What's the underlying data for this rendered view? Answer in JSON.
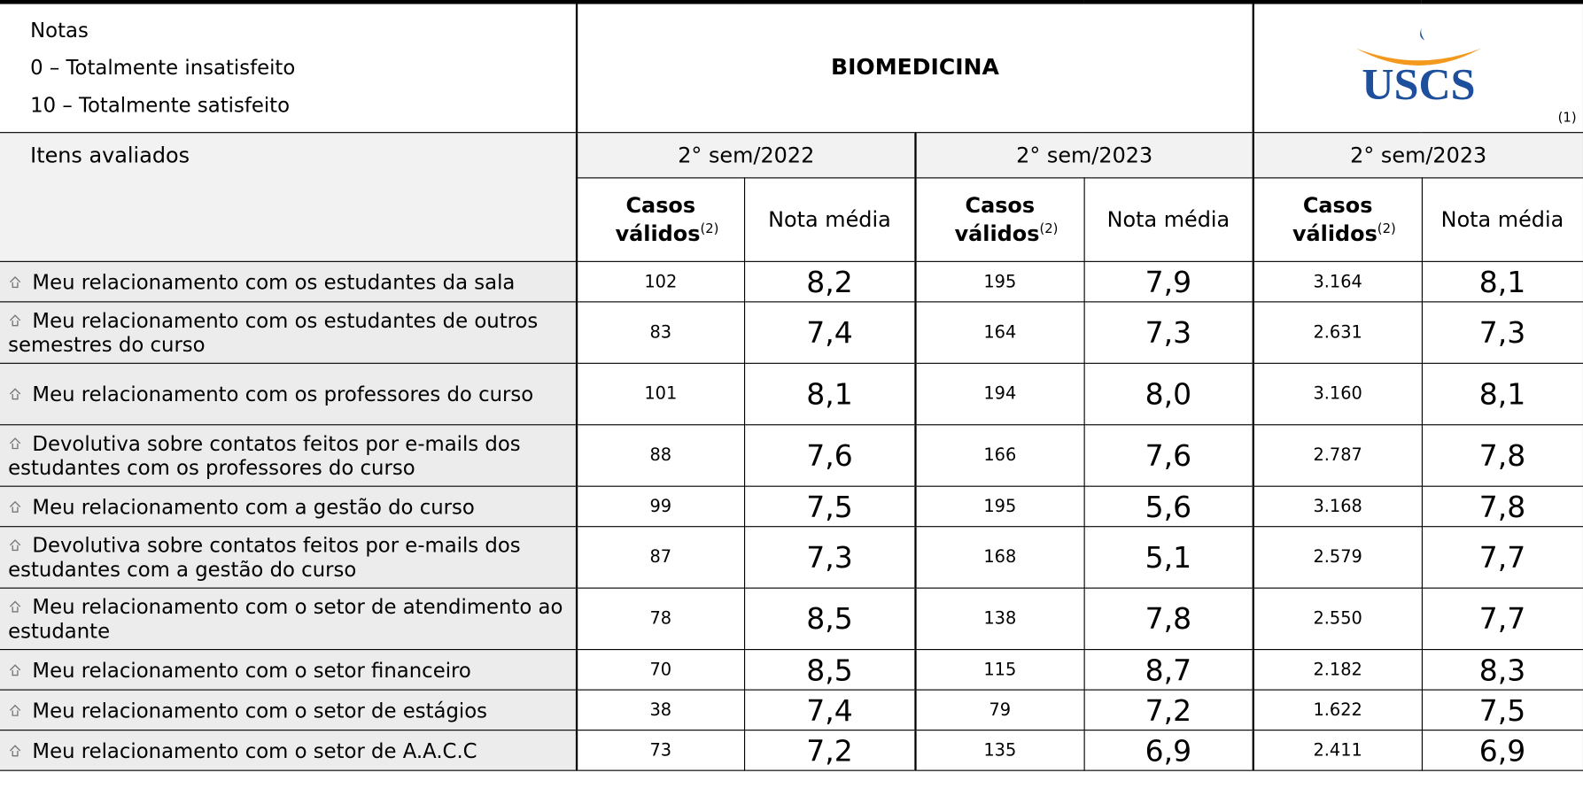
{
  "header": {
    "notes": [
      "Notas",
      "0 – Totalmente insatisfeito",
      "10 – Totalmente satisfeito"
    ],
    "title": "BIOMEDICINA",
    "logo": "USCS",
    "logo_note": "(1)"
  },
  "table": {
    "row_header": "Itens avaliados",
    "periods": [
      "2° sem/2022",
      "2° sem/2023",
      "2° sem/2023"
    ],
    "columns": [
      {
        "label": "Casos válidos",
        "note": "(2)"
      },
      {
        "label": "Nota média"
      }
    ],
    "rows": [
      {
        "item": "Meu relacionamento com os estudantes da sala",
        "values": [
          "102",
          "8,2",
          "195",
          "7,9",
          "3.164",
          "8,1"
        ]
      },
      {
        "item": "Meu relacionamento com os estudantes de outros semestres do curso",
        "values": [
          "83",
          "7,4",
          "164",
          "7,3",
          "2.631",
          "7,3"
        ]
      },
      {
        "item": "Meu relacionamento com os professores do curso",
        "values": [
          "101",
          "8,1",
          "194",
          "8,0",
          "3.160",
          "8,1"
        ]
      },
      {
        "item": "Devolutiva sobre contatos feitos por e-mails dos estudantes com os professores do curso",
        "values": [
          "88",
          "7,6",
          "166",
          "7,6",
          "2.787",
          "7,8"
        ]
      },
      {
        "item": "Meu relacionamento com a gestão do curso",
        "values": [
          "99",
          "7,5",
          "195",
          "5,6",
          "3.168",
          "7,8"
        ]
      },
      {
        "item": "Devolutiva sobre contatos feitos por e-mails dos estudantes com a gestão do curso",
        "values": [
          "87",
          "7,3",
          "168",
          "5,1",
          "2.579",
          "7,7"
        ]
      },
      {
        "item": "Meu relacionamento com o setor de atendimento ao estudante",
        "values": [
          "78",
          "8,5",
          "138",
          "7,8",
          "2.550",
          "7,7"
        ]
      },
      {
        "item": "Meu relacionamento com o setor financeiro",
        "values": [
          "70",
          "8,5",
          "115",
          "8,7",
          "2.182",
          "8,3"
        ]
      },
      {
        "item": "Meu relacionamento com o setor de estágios",
        "values": [
          "38",
          "7,4",
          "79",
          "7,2",
          "1.622",
          "7,5"
        ]
      },
      {
        "item": "Meu relacionamento com o setor de A.A.C.C",
        "values": [
          "73",
          "7,2",
          "135",
          "6,9",
          "2.411",
          "6,9"
        ]
      }
    ]
  }
}
